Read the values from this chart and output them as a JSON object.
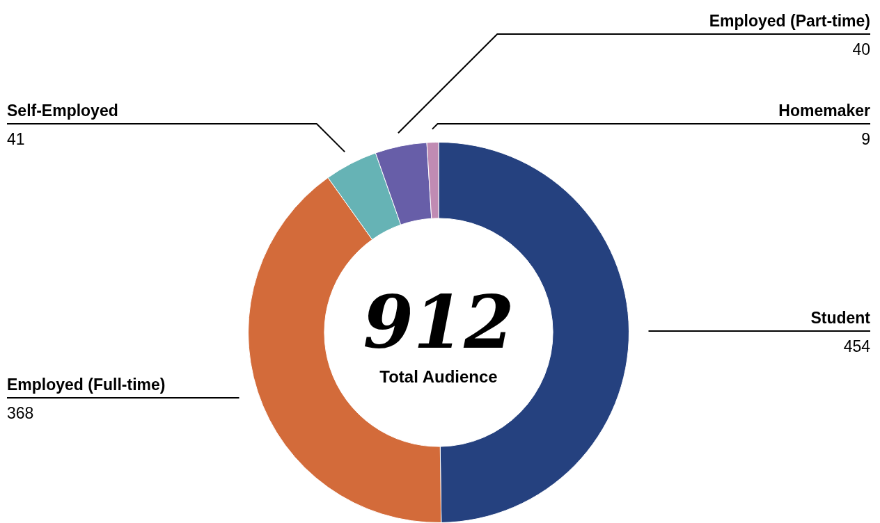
{
  "chart_data": {
    "type": "donut",
    "categories": [
      "Student",
      "Employed (Full-time)",
      "Self-Employed",
      "Employed (Part-time)",
      "Homemaker"
    ],
    "values": [
      454,
      368,
      41,
      40,
      9
    ],
    "colors": [
      "#25417f",
      "#d36b3a",
      "#66b3b5",
      "#675ea8",
      "#c08bb3"
    ],
    "data_labels": true,
    "legend": false,
    "annotations": [
      "912",
      "Total Audience"
    ]
  }
}
